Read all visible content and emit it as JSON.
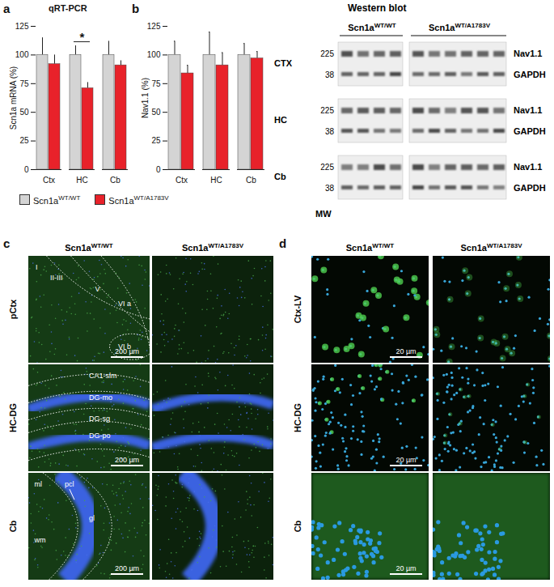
{
  "chart_data": [
    {
      "type": "bar",
      "title": "qRT-PCR",
      "y_label": "Scn1a mRNA (%)",
      "categories": [
        "Ctx",
        "HC",
        "Cb"
      ],
      "series": [
        {
          "name": "Scn1aWT/WT",
          "color": "#d4d4d4",
          "values": [
            100,
            100,
            100
          ],
          "errors": [
            15,
            8,
            12
          ]
        },
        {
          "name": "Scn1aWT/A1783V",
          "color": "#e8222a",
          "values": [
            92,
            71,
            91
          ],
          "errors": [
            8,
            5,
            4
          ]
        }
      ],
      "ylim": [
        0,
        125
      ],
      "yticks": [
        0,
        25,
        50,
        75,
        100,
        125
      ],
      "annotations": [
        {
          "category": "HC",
          "text": "*"
        }
      ]
    },
    {
      "type": "bar",
      "y_label": "Nav1.1 (%)",
      "categories": [
        "Ctx",
        "HC",
        "Cb"
      ],
      "series": [
        {
          "name": "Scn1aWT/WT",
          "color": "#d4d4d4",
          "values": [
            100,
            100,
            100
          ],
          "errors": [
            12,
            20,
            10
          ]
        },
        {
          "name": "Scn1aWT/A1783V",
          "color": "#e8222a",
          "values": [
            84,
            91,
            97
          ],
          "errors": [
            7,
            11,
            6
          ]
        }
      ],
      "ylim": [
        0,
        125
      ],
      "yticks": [
        0,
        25,
        50,
        75,
        100,
        125
      ]
    }
  ],
  "panel_letters": [
    "a",
    "b",
    "c",
    "d"
  ],
  "western_blot": {
    "title": "Western blot",
    "columns": [
      "Scn1aWT/WT",
      "Scn1aWT/A1783V"
    ],
    "lanes": [
      4,
      6
    ],
    "rows": [
      "CTX",
      "HC",
      "Cb"
    ],
    "mw_label": "MW",
    "bands": [
      {
        "name": "Nav1.1",
        "mw": 225
      },
      {
        "name": "GAPDH",
        "mw": 38
      }
    ]
  },
  "immunostaining": [
    {
      "columns": [
        "Scn1aWT/WT",
        "Scn1aWT/A1783V"
      ],
      "rows": [
        {
          "name": "pCtx",
          "regions": [
            "I",
            "II-III",
            "V",
            "VI a",
            "VI b"
          ],
          "scale_bar": "200 µm"
        },
        {
          "name": "HC-DG",
          "regions": [
            "CA1-slm",
            "DG-mo",
            "DG-sg",
            "DG-po"
          ],
          "scale_bar": "200 µm"
        },
        {
          "name": "Cb",
          "regions": [
            "ml",
            "pcl",
            "gl",
            "wm"
          ],
          "scale_bar": "200 µm"
        }
      ]
    },
    {
      "columns": [
        "Scn1aWT/WT",
        "Scn1aWT/A1783V"
      ],
      "rows": [
        {
          "name": "Ctx-LV",
          "scale_bar": "20 µm"
        },
        {
          "name": "HC-DG",
          "scale_bar": "20 µm"
        },
        {
          "name": "Cb",
          "scale_bar": "20 µm"
        }
      ]
    }
  ]
}
